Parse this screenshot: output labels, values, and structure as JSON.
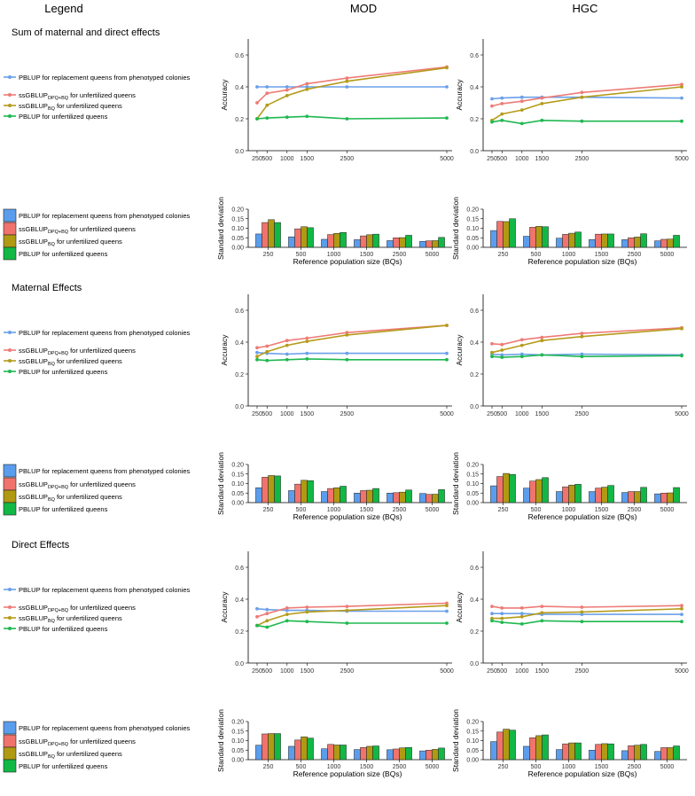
{
  "headers": {
    "legend": "Legend",
    "mod": "MOD",
    "hgc": "HGC"
  },
  "colors": {
    "pblup_replacement": "#6aa0e8",
    "ssgblup_dpq_bq": "#ee7b76",
    "ssgblup_bq": "#b59b1a",
    "pblup_unfertilized": "#1fb850",
    "bar_pblup_replacement": "#5b9ded",
    "bar_ssgblup_dpq_bq": "#f0736d",
    "bar_ssgblup_bq": "#b09a13",
    "bar_pblup_unfertilized": "#12b845"
  },
  "legend_entries": [
    {
      "pre": "PBLUP for replacement queens from phenotyped colonies",
      "sub": "",
      "post": "",
      "key": "pblup_replacement"
    },
    {
      "pre": "ssGBLUP",
      "sub": "DPQ+BQ",
      "post": " for unfertilized queens",
      "key": "ssgblup_dpq_bq"
    },
    {
      "pre": "ssGBLUP",
      "sub": "BQ",
      "post": " for unfertilized queens",
      "key": "ssgblup_bq"
    },
    {
      "pre": "PBLUP for unfertilized queens",
      "sub": "",
      "post": "",
      "key": "pblup_unfertilized"
    }
  ],
  "chart_data": {
    "type": "line+bar",
    "xlabel_bars": "Reference population size (BQs)",
    "ylabel_line": "Accuracy",
    "ylabel_bar": "Standard deviation",
    "reference_sizes": [
      250,
      500,
      1000,
      1500,
      2500,
      5000
    ],
    "line_x_ticks": [
      "250",
      "500",
      "1000",
      "1500",
      "2500",
      "5000"
    ],
    "bar_x_ticks": [
      "250",
      "500",
      "1000",
      "1500",
      "2500",
      "5000"
    ],
    "line_ylim": [
      0,
      0.7
    ],
    "line_y_ticks": [
      "0.0",
      "0.2",
      "0.4",
      "0.6"
    ],
    "bar_ylim": [
      0,
      0.2
    ],
    "bar_y_ticks": [
      "0.00",
      "0.05",
      "0.10",
      "0.15",
      "0.20"
    ],
    "sections": [
      {
        "title": "Sum of maternal and direct effects",
        "panels": [
          {
            "column": "MOD",
            "accuracy": [
              {
                "name": "PBLUP for replacement queens from phenotyped colonies",
                "values": [
                  0.4,
                  0.4,
                  0.4,
                  0.4,
                  0.4,
                  0.4
                ]
              },
              {
                "name": "ssGBLUP DPQ+BQ for unfertilized queens",
                "values": [
                  0.3,
                  0.36,
                  0.38,
                  0.42,
                  0.455,
                  0.525
                ]
              },
              {
                "name": "ssGBLUP BQ for unfertilized queens",
                "values": [
                  0.2,
                  0.285,
                  0.345,
                  0.385,
                  0.435,
                  0.52
                ]
              },
              {
                "name": "PBLUP for unfertilized queens",
                "values": [
                  0.2,
                  0.205,
                  0.21,
                  0.215,
                  0.2,
                  0.205
                ]
              }
            ],
            "sd": [
              [
                0.07,
                0.13,
                0.145,
                0.13
              ],
              [
                0.055,
                0.097,
                0.108,
                0.103
              ],
              [
                0.042,
                0.067,
                0.073,
                0.078
              ],
              [
                0.04,
                0.06,
                0.066,
                0.069
              ],
              [
                0.035,
                0.05,
                0.051,
                0.063
              ],
              [
                0.031,
                0.034,
                0.035,
                0.052
              ]
            ]
          },
          {
            "column": "HGC",
            "accuracy": [
              {
                "name": "PBLUP for replacement queens from phenotyped colonies",
                "values": [
                  0.325,
                  0.33,
                  0.335,
                  0.335,
                  0.335,
                  0.33
                ]
              },
              {
                "name": "ssGBLUP DPQ+BQ for unfertilized queens",
                "values": [
                  0.28,
                  0.295,
                  0.31,
                  0.33,
                  0.365,
                  0.415
                ]
              },
              {
                "name": "ssGBLUP BQ for unfertilized queens",
                "values": [
                  0.19,
                  0.23,
                  0.255,
                  0.295,
                  0.335,
                  0.4
                ]
              },
              {
                "name": "PBLUP for unfertilized queens",
                "values": [
                  0.18,
                  0.19,
                  0.17,
                  0.19,
                  0.185,
                  0.185
                ]
              }
            ],
            "sd": [
              [
                0.088,
                0.136,
                0.135,
                0.15
              ],
              [
                0.058,
                0.105,
                0.11,
                0.108
              ],
              [
                0.048,
                0.068,
                0.074,
                0.08
              ],
              [
                0.041,
                0.069,
                0.07,
                0.07
              ],
              [
                0.04,
                0.05,
                0.054,
                0.071
              ],
              [
                0.034,
                0.042,
                0.043,
                0.063
              ]
            ]
          }
        ]
      },
      {
        "title": "Maternal Effects",
        "panels": [
          {
            "column": "MOD",
            "accuracy": [
              {
                "name": "PBLUP for replacement queens from phenotyped colonies",
                "values": [
                  0.335,
                  0.33,
                  0.325,
                  0.33,
                  0.33,
                  0.33
                ]
              },
              {
                "name": "ssGBLUP DPQ+BQ for unfertilized queens",
                "values": [
                  0.365,
                  0.375,
                  0.41,
                  0.425,
                  0.46,
                  0.505
                ]
              },
              {
                "name": "ssGBLUP BQ for unfertilized queens",
                "values": [
                  0.31,
                  0.34,
                  0.38,
                  0.405,
                  0.445,
                  0.505
                ]
              },
              {
                "name": "PBLUP for unfertilized queens",
                "values": [
                  0.29,
                  0.285,
                  0.29,
                  0.295,
                  0.29,
                  0.29
                ]
              }
            ],
            "sd": [
              [
                0.078,
                0.133,
                0.142,
                0.14
              ],
              [
                0.063,
                0.097,
                0.117,
                0.115
              ],
              [
                0.058,
                0.074,
                0.078,
                0.086
              ],
              [
                0.05,
                0.063,
                0.065,
                0.074
              ],
              [
                0.05,
                0.052,
                0.055,
                0.066
              ],
              [
                0.048,
                0.043,
                0.044,
                0.068
              ]
            ]
          },
          {
            "column": "HGC",
            "accuracy": [
              {
                "name": "PBLUP for replacement queens from phenotyped colonies",
                "values": [
                  0.325,
                  0.32,
                  0.325,
                  0.32,
                  0.325,
                  0.32
                ]
              },
              {
                "name": "ssGBLUP DPQ+BQ for unfertilized queens",
                "values": [
                  0.39,
                  0.385,
                  0.415,
                  0.43,
                  0.455,
                  0.49
                ]
              },
              {
                "name": "ssGBLUP BQ for unfertilized queens",
                "values": [
                  0.335,
                  0.35,
                  0.38,
                  0.41,
                  0.435,
                  0.485
                ]
              },
              {
                "name": "PBLUP for unfertilized queens",
                "values": [
                  0.31,
                  0.305,
                  0.31,
                  0.32,
                  0.31,
                  0.315
                ]
              }
            ],
            "sd": [
              [
                0.088,
                0.137,
                0.153,
                0.148
              ],
              [
                0.076,
                0.113,
                0.121,
                0.131
              ],
              [
                0.058,
                0.083,
                0.092,
                0.096
              ],
              [
                0.058,
                0.076,
                0.081,
                0.09
              ],
              [
                0.053,
                0.058,
                0.058,
                0.08
              ],
              [
                0.046,
                0.05,
                0.051,
                0.079
              ]
            ]
          }
        ]
      },
      {
        "title": "Direct Effects",
        "panels": [
          {
            "column": "MOD",
            "accuracy": [
              {
                "name": "PBLUP for replacement queens from phenotyped colonies",
                "values": [
                  0.34,
                  0.335,
                  0.33,
                  0.33,
                  0.325,
                  0.325
                ]
              },
              {
                "name": "ssGBLUP DPQ+BQ for unfertilized queens",
                "values": [
                  0.29,
                  0.31,
                  0.345,
                  0.35,
                  0.355,
                  0.375
                ]
              },
              {
                "name": "ssGBLUP BQ for unfertilized queens",
                "values": [
                  0.235,
                  0.265,
                  0.305,
                  0.32,
                  0.33,
                  0.36
                ]
              },
              {
                "name": "PBLUP for unfertilized queens",
                "values": [
                  0.235,
                  0.225,
                  0.265,
                  0.26,
                  0.25,
                  0.25
                ]
              }
            ],
            "sd": [
              [
                0.076,
                0.135,
                0.137,
                0.137
              ],
              [
                0.07,
                0.103,
                0.12,
                0.113
              ],
              [
                0.057,
                0.08,
                0.077,
                0.077
              ],
              [
                0.053,
                0.064,
                0.07,
                0.072
              ],
              [
                0.052,
                0.056,
                0.062,
                0.064
              ],
              [
                0.046,
                0.05,
                0.054,
                0.061
              ]
            ]
          },
          {
            "column": "HGC",
            "accuracy": [
              {
                "name": "PBLUP for replacement queens from phenotyped colonies",
                "values": [
                  0.31,
                  0.31,
                  0.31,
                  0.305,
                  0.305,
                  0.305
                ]
              },
              {
                "name": "ssGBLUP DPQ+BQ for unfertilized queens",
                "values": [
                  0.355,
                  0.345,
                  0.345,
                  0.355,
                  0.35,
                  0.36
                ]
              },
              {
                "name": "ssGBLUP BQ for unfertilized queens",
                "values": [
                  0.28,
                  0.28,
                  0.29,
                  0.315,
                  0.32,
                  0.34
                ]
              },
              {
                "name": "PBLUP for unfertilized queens",
                "values": [
                  0.265,
                  0.255,
                  0.245,
                  0.265,
                  0.26,
                  0.26
                ]
              }
            ],
            "sd": [
              [
                0.095,
                0.145,
                0.16,
                0.155
              ],
              [
                0.07,
                0.115,
                0.126,
                0.13
              ],
              [
                0.053,
                0.083,
                0.088,
                0.088
              ],
              [
                0.05,
                0.08,
                0.084,
                0.083
              ],
              [
                0.047,
                0.073,
                0.076,
                0.08
              ],
              [
                0.043,
                0.063,
                0.063,
                0.072
              ]
            ]
          }
        ]
      }
    ]
  }
}
